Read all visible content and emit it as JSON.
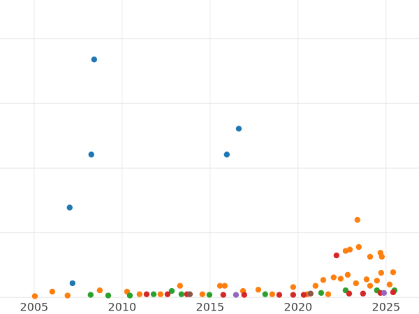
{
  "chart_data": {
    "type": "scatter",
    "xlim": [
      2003.06,
      2026.87
    ],
    "xticks": [
      2005,
      2010,
      2015,
      2020,
      2025
    ],
    "ylim": [
      -0.04,
      4.6
    ],
    "ygrid": [
      0,
      1,
      2,
      3,
      4
    ],
    "grid": true,
    "series": [
      {
        "color": "#1f77b4",
        "x": [
          2008.41,
          2016.63,
          2008.25,
          2015.95,
          2007.02,
          2007.18
        ],
        "values": [
          3.68,
          2.61,
          2.21,
          2.21,
          1.39,
          0.22
        ]
      },
      {
        "color": "#ff7f0e",
        "x": [
          2005.04,
          2006.03,
          2006.9,
          2008.73,
          2010.28,
          2013.29,
          2015.56,
          2015.83,
          2016.87,
          2017.74,
          2019.72,
          2020.99,
          2021.43,
          2022.02,
          2022.42,
          2022.82,
          2022.7,
          2022.94,
          2023.37,
          2023.45,
          2024.09,
          2024.68,
          2024.76,
          2024.72,
          2025.4,
          2023.89,
          2024.48,
          2023.29,
          2025.2,
          2024.09,
          2010.99,
          2012.18,
          2014.56,
          2018.53,
          2020.52,
          2021.71
        ],
        "values": [
          0.02,
          0.09,
          0.03,
          0.11,
          0.09,
          0.18,
          0.18,
          0.18,
          0.1,
          0.12,
          0.16,
          0.18,
          0.27,
          0.31,
          0.29,
          0.35,
          0.72,
          0.74,
          1.2,
          0.78,
          0.63,
          0.69,
          0.63,
          0.38,
          0.39,
          0.28,
          0.26,
          0.22,
          0.2,
          0.18,
          0.05,
          0.05,
          0.05,
          0.05,
          0.05,
          0.05
        ]
      },
      {
        "color": "#2ca02c",
        "x": [
          2008.21,
          2009.21,
          2010.44,
          2011.79,
          2012.82,
          2013.37,
          2014.96,
          2018.13,
          2021.31,
          2022.7,
          2024.48,
          2025.48
        ],
        "values": [
          0.04,
          0.03,
          0.03,
          0.05,
          0.1,
          0.05,
          0.04,
          0.05,
          0.07,
          0.11,
          0.11,
          0.11
        ]
      },
      {
        "color": "#d62728",
        "x": [
          2022.18,
          2011.39,
          2012.58,
          2013.69,
          2015.75,
          2016.94,
          2018.93,
          2019.72,
          2020.32,
          2022.9,
          2023.69,
          2024.68,
          2025.4
        ],
        "values": [
          0.65,
          0.05,
          0.05,
          0.05,
          0.04,
          0.04,
          0.04,
          0.04,
          0.04,
          0.06,
          0.06,
          0.07,
          0.08
        ]
      },
      {
        "color": "#9467bd",
        "x": [
          2016.47,
          2024.88
        ],
        "values": [
          0.04,
          0.07
        ]
      },
      {
        "color": "#8c564b",
        "x": [
          2013.85,
          2020.71
        ],
        "values": [
          0.05,
          0.06
        ]
      }
    ]
  }
}
